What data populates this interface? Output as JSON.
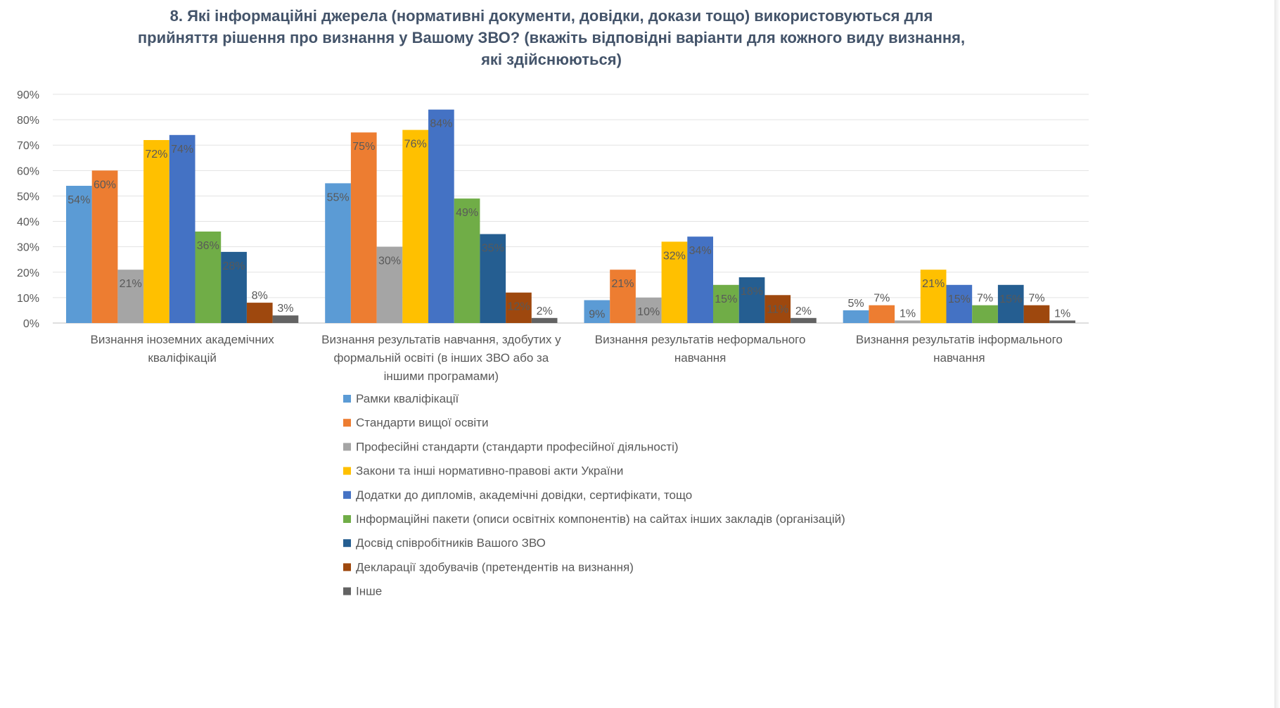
{
  "chart_data": {
    "type": "bar",
    "title_lines": [
      "8. Які інформаційні джерела (нормативні документи, довідки, докази тощо) використовуються для",
      "прийняття рішення про визнання у Вашому ЗВО? (вкажіть відповідні варіанти для кожного виду визнання,",
      "які здійснюються)"
    ],
    "ylim": [
      0,
      90
    ],
    "y_ticks": [
      0,
      10,
      20,
      30,
      40,
      50,
      60,
      70,
      80,
      90
    ],
    "y_tick_labels": [
      "0%",
      "10%",
      "20%",
      "30%",
      "40%",
      "50%",
      "60%",
      "70%",
      "80%",
      "90%"
    ],
    "grid": true,
    "legend_placement": "bottom",
    "categories": [
      [
        "Визнання іноземних академічних",
        "кваліфікацій"
      ],
      [
        "Визнання результатів навчання, здобутих у",
        "формальній освіті (в інших ЗВО або за",
        "іншими програмами)"
      ],
      [
        "Визнання результатів неформального",
        "навчання"
      ],
      [
        "Визнання результатів інформального",
        "навчання"
      ]
    ],
    "series": [
      {
        "name": "Рамки кваліфікації",
        "color": "#5b9bd5",
        "values": [
          54,
          55,
          9,
          5
        ],
        "labels": [
          "54%",
          "55%",
          "9%",
          "5%"
        ]
      },
      {
        "name": "Стандарти вищої освіти",
        "color": "#ed7d31",
        "values": [
          60,
          75,
          21,
          7
        ],
        "labels": [
          "60%",
          "75%",
          "21%",
          "7%"
        ]
      },
      {
        "name": "Професійні стандарти (стандарти професійної діяльності)",
        "color": "#a5a5a5",
        "values": [
          21,
          30,
          10,
          1
        ],
        "labels": [
          "21%",
          "30%",
          "10%",
          "1%"
        ]
      },
      {
        "name": "Закони та інші нормативно-правові акти України",
        "color": "#ffc000",
        "values": [
          72,
          76,
          32,
          21
        ],
        "labels": [
          "72%",
          "76%",
          "32%",
          "21%"
        ]
      },
      {
        "name": "Додатки до дипломів, академічні довідки, сертифікати, тощо",
        "color": "#4472c4",
        "values": [
          74,
          84,
          34,
          15
        ],
        "labels": [
          "74%",
          "84%",
          "34%",
          "15%"
        ]
      },
      {
        "name": "Інформаційні пакети (описи освітніх компонентів) на сайтах інших закладів (організацій)",
        "color": "#70ad47",
        "values": [
          36,
          49,
          15,
          7
        ],
        "labels": [
          "36%",
          "49%",
          "15%",
          "7%"
        ]
      },
      {
        "name": "Досвід співробітників Вашого ЗВО",
        "color": "#255e91",
        "values": [
          28,
          35,
          18,
          15
        ],
        "labels": [
          "28%",
          "35%",
          "18%",
          "15%"
        ]
      },
      {
        "name": "Декларації здобувачів (претендентів на визнання)",
        "color": "#9e480e",
        "values": [
          8,
          12,
          11,
          7
        ],
        "labels": [
          "8%",
          "12%",
          "11%",
          "7%"
        ]
      },
      {
        "name": "Інше",
        "color": "#636363",
        "values": [
          3,
          2,
          2,
          1
        ],
        "labels": [
          "3%",
          "2%",
          "2%",
          "1%"
        ]
      }
    ]
  }
}
